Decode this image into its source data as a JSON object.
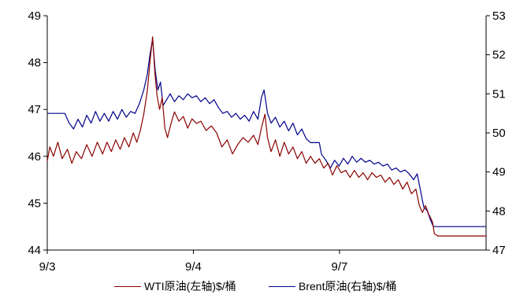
{
  "chart_data": {
    "type": "line",
    "x_labels": [
      "9/3",
      "9/4",
      "9/7"
    ],
    "y_left": {
      "ylim": [
        44,
        49
      ],
      "ticks": [
        44,
        45,
        46,
        47,
        48,
        49
      ]
    },
    "y_right": {
      "ylim": [
        47,
        53
      ],
      "ticks": [
        47,
        48,
        49,
        50,
        51,
        52,
        53
      ]
    },
    "colors": {
      "wti": "#8b0000",
      "brent": "#00008b"
    },
    "series": [
      {
        "name": "WTI原油(左轴)$/桶",
        "axis": "left",
        "points": [
          [
            0,
            45.9
          ],
          [
            0.6,
            46.2
          ],
          [
            1.4,
            46.0
          ],
          [
            2.4,
            46.3
          ],
          [
            3.4,
            45.95
          ],
          [
            4.6,
            46.15
          ],
          [
            5.6,
            45.85
          ],
          [
            6.6,
            46.1
          ],
          [
            7.8,
            45.95
          ],
          [
            9.0,
            46.25
          ],
          [
            10.2,
            46.0
          ],
          [
            11.4,
            46.3
          ],
          [
            12.6,
            46.05
          ],
          [
            13.6,
            46.3
          ],
          [
            14.6,
            46.1
          ],
          [
            15.6,
            46.35
          ],
          [
            16.6,
            46.15
          ],
          [
            17.6,
            46.4
          ],
          [
            18.6,
            46.2
          ],
          [
            19.6,
            46.5
          ],
          [
            20.4,
            46.3
          ],
          [
            21.2,
            46.55
          ],
          [
            22.0,
            46.9
          ],
          [
            22.8,
            47.4
          ],
          [
            23.4,
            48.0
          ],
          [
            24.0,
            48.55
          ],
          [
            24.5,
            47.8
          ],
          [
            25.0,
            47.3
          ],
          [
            25.6,
            47.0
          ],
          [
            26.2,
            47.25
          ],
          [
            26.8,
            46.6
          ],
          [
            27.4,
            46.4
          ],
          [
            28.2,
            46.7
          ],
          [
            29.0,
            46.95
          ],
          [
            30.0,
            46.75
          ],
          [
            31.0,
            46.85
          ],
          [
            32.0,
            46.6
          ],
          [
            33.0,
            46.8
          ],
          [
            34.0,
            46.7
          ],
          [
            35.0,
            46.75
          ],
          [
            36.2,
            46.55
          ],
          [
            37.4,
            46.65
          ],
          [
            38.6,
            46.5
          ],
          [
            39.8,
            46.2
          ],
          [
            41.0,
            46.35
          ],
          [
            42.2,
            46.05
          ],
          [
            43.4,
            46.25
          ],
          [
            44.6,
            46.4
          ],
          [
            45.8,
            46.3
          ],
          [
            47.0,
            46.45
          ],
          [
            48.0,
            46.25
          ],
          [
            48.8,
            46.6
          ],
          [
            49.6,
            46.9
          ],
          [
            50.2,
            46.4
          ],
          [
            51.0,
            46.1
          ],
          [
            52.0,
            46.35
          ],
          [
            53.0,
            46.0
          ],
          [
            54.0,
            46.3
          ],
          [
            55.0,
            46.05
          ],
          [
            56.0,
            46.2
          ],
          [
            57.0,
            45.95
          ],
          [
            58.0,
            46.1
          ],
          [
            59.0,
            45.85
          ],
          [
            60.0,
            46.0
          ],
          [
            61.0,
            45.85
          ],
          [
            62.0,
            45.95
          ],
          [
            63.0,
            45.75
          ],
          [
            64.0,
            45.85
          ],
          [
            65.0,
            45.6
          ],
          [
            66.0,
            45.8
          ],
          [
            67.0,
            45.65
          ],
          [
            68.0,
            45.7
          ],
          [
            69.0,
            45.55
          ],
          [
            70.0,
            45.7
          ],
          [
            71.0,
            45.55
          ],
          [
            72.0,
            45.65
          ],
          [
            73.0,
            45.5
          ],
          [
            74.0,
            45.65
          ],
          [
            75.0,
            45.55
          ],
          [
            76.0,
            45.6
          ],
          [
            77.0,
            45.45
          ],
          [
            78.0,
            45.55
          ],
          [
            79.0,
            45.4
          ],
          [
            80.0,
            45.5
          ],
          [
            81.0,
            45.3
          ],
          [
            82.0,
            45.45
          ],
          [
            83.0,
            45.2
          ],
          [
            84.0,
            45.3
          ],
          [
            84.8,
            44.95
          ],
          [
            85.5,
            44.8
          ],
          [
            86.2,
            44.95
          ],
          [
            87.0,
            44.75
          ],
          [
            87.8,
            44.6
          ],
          [
            88.2,
            44.35
          ],
          [
            89.0,
            44.3
          ],
          [
            100,
            44.3
          ]
        ]
      },
      {
        "name": "Brent原油(右轴)$/桶",
        "axis": "right",
        "points": [
          [
            0,
            50.5
          ],
          [
            4.0,
            50.5
          ],
          [
            5.0,
            50.25
          ],
          [
            6.0,
            50.1
          ],
          [
            7.0,
            50.35
          ],
          [
            8.0,
            50.15
          ],
          [
            9.0,
            50.45
          ],
          [
            10.0,
            50.25
          ],
          [
            11.0,
            50.55
          ],
          [
            12.0,
            50.3
          ],
          [
            13.0,
            50.5
          ],
          [
            14.0,
            50.3
          ],
          [
            15.0,
            50.55
          ],
          [
            16.0,
            50.35
          ],
          [
            17.0,
            50.6
          ],
          [
            18.0,
            50.4
          ],
          [
            19.0,
            50.55
          ],
          [
            20.0,
            50.5
          ],
          [
            21.0,
            50.75
          ],
          [
            22.0,
            51.1
          ],
          [
            22.8,
            51.5
          ],
          [
            23.4,
            52.0
          ],
          [
            24.0,
            52.4
          ],
          [
            24.6,
            51.6
          ],
          [
            25.2,
            51.1
          ],
          [
            25.8,
            51.3
          ],
          [
            26.4,
            50.7
          ],
          [
            27.2,
            50.85
          ],
          [
            28.0,
            51.0
          ],
          [
            29.0,
            50.8
          ],
          [
            30.0,
            50.95
          ],
          [
            31.0,
            50.85
          ],
          [
            32.0,
            51.0
          ],
          [
            33.0,
            50.9
          ],
          [
            34.0,
            50.95
          ],
          [
            35.0,
            50.8
          ],
          [
            36.0,
            50.9
          ],
          [
            37.0,
            50.75
          ],
          [
            38.0,
            50.85
          ],
          [
            39.0,
            50.65
          ],
          [
            40.0,
            50.5
          ],
          [
            41.0,
            50.55
          ],
          [
            42.0,
            50.4
          ],
          [
            43.0,
            50.5
          ],
          [
            44.0,
            50.35
          ],
          [
            45.0,
            50.45
          ],
          [
            46.0,
            50.3
          ],
          [
            47.0,
            50.55
          ],
          [
            48.0,
            50.35
          ],
          [
            48.8,
            50.9
          ],
          [
            49.4,
            51.1
          ],
          [
            50.2,
            50.5
          ],
          [
            51.0,
            50.25
          ],
          [
            52.0,
            50.4
          ],
          [
            53.0,
            50.15
          ],
          [
            54.0,
            50.3
          ],
          [
            55.0,
            50.05
          ],
          [
            56.0,
            50.25
          ],
          [
            57.0,
            49.95
          ],
          [
            58.0,
            50.1
          ],
          [
            59.0,
            49.85
          ],
          [
            60.0,
            49.75
          ],
          [
            60.5,
            49.75
          ],
          [
            62.0,
            49.75
          ],
          [
            62.5,
            49.45
          ],
          [
            63.5,
            49.3
          ],
          [
            64.5,
            49.1
          ],
          [
            65.5,
            49.3
          ],
          [
            66.5,
            49.15
          ],
          [
            67.5,
            49.35
          ],
          [
            68.5,
            49.2
          ],
          [
            69.5,
            49.4
          ],
          [
            70.5,
            49.25
          ],
          [
            71.5,
            49.35
          ],
          [
            72.5,
            49.25
          ],
          [
            73.5,
            49.3
          ],
          [
            74.5,
            49.2
          ],
          [
            75.5,
            49.25
          ],
          [
            76.5,
            49.15
          ],
          [
            77.5,
            49.2
          ],
          [
            78.5,
            49.05
          ],
          [
            79.5,
            49.1
          ],
          [
            80.5,
            49.0
          ],
          [
            81.5,
            49.05
          ],
          [
            82.5,
            48.95
          ],
          [
            83.5,
            48.8
          ],
          [
            84.3,
            48.95
          ],
          [
            85.0,
            48.55
          ],
          [
            85.8,
            48.1
          ],
          [
            86.6,
            48.0
          ],
          [
            87.4,
            47.75
          ],
          [
            88.0,
            47.6
          ],
          [
            89.0,
            47.6
          ],
          [
            100,
            47.6
          ]
        ]
      }
    ]
  }
}
